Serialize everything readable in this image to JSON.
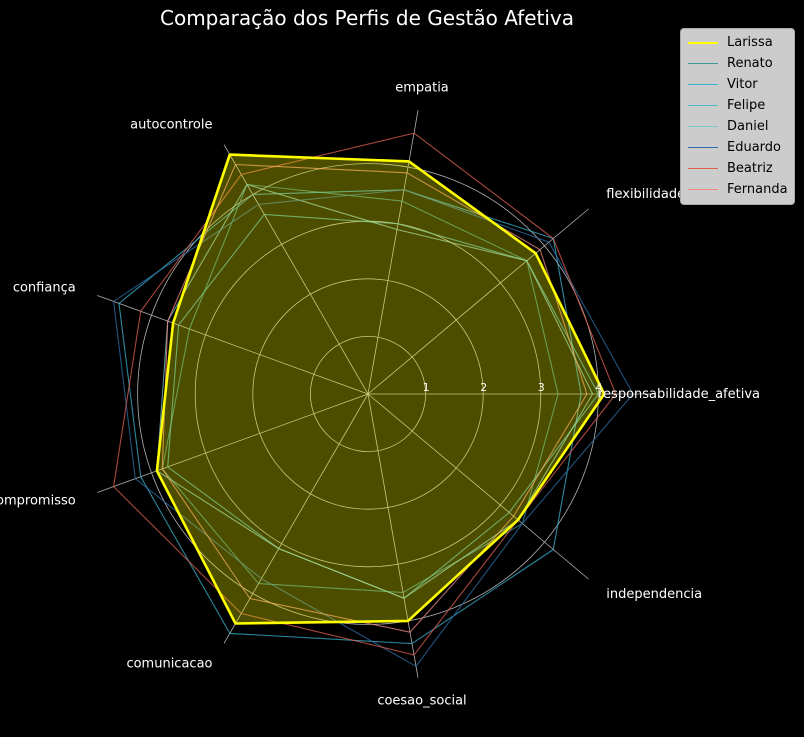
{
  "chart_data": {
    "type": "radar",
    "title": "Comparação dos Perfis de Gestão Afetiva",
    "axes": [
      "responsabilidade_afetiva",
      "flexibilidade_cognitiva",
      "empatia",
      "autocontrole",
      "confiança",
      "compromisso",
      "comunicacao",
      "coesao_social",
      "independencia"
    ],
    "rlim": [
      0,
      5
    ],
    "rticks": [
      1,
      2,
      3,
      4
    ],
    "grid": true,
    "legend_position": "upper-right",
    "series": [
      {
        "name": "Larissa",
        "color": "#ffff00",
        "fill": "#ffff00",
        "values": [
          4.1,
          3.8,
          4.1,
          4.8,
          3.6,
          3.9,
          4.6,
          4.0,
          3.4
        ]
      },
      {
        "name": "Renato",
        "color": "#3a9b9b",
        "values": [
          3.3,
          3.6,
          3.4,
          4.2,
          3.3,
          3.8,
          3.8,
          3.5,
          3.5
        ]
      },
      {
        "name": "Vitor",
        "color": "#3cb4d2",
        "values": [
          3.7,
          4.2,
          3.6,
          4.0,
          4.6,
          4.2,
          4.8,
          4.4,
          4.2
        ]
      },
      {
        "name": "Felipe",
        "color": "#4ab8c8",
        "values": [
          4.0,
          3.6,
          3.0,
          3.6,
          3.5,
          3.7,
          3.1,
          3.6,
          3.2
        ]
      },
      {
        "name": "Daniel",
        "color": "#7ec8d6",
        "values": [
          3.9,
          3.6,
          2.9,
          4.2,
          3.7,
          3.9,
          3.1,
          3.6,
          3.4
        ]
      },
      {
        "name": "Eduardo",
        "color": "#2e6fa8",
        "values": [
          4.6,
          4.1,
          3.6,
          3.8,
          4.7,
          4.3,
          3.7,
          4.8,
          3.5
        ]
      },
      {
        "name": "Beatriz",
        "color": "#e06050",
        "values": [
          4.3,
          4.2,
          4.6,
          4.4,
          4.2,
          4.7,
          4.4,
          4.6,
          3.4
        ]
      },
      {
        "name": "Fernanda",
        "color": "#f08a80",
        "values": [
          3.8,
          3.9,
          3.9,
          4.6,
          3.7,
          3.8,
          4.1,
          4.2,
          3.3
        ]
      }
    ]
  }
}
